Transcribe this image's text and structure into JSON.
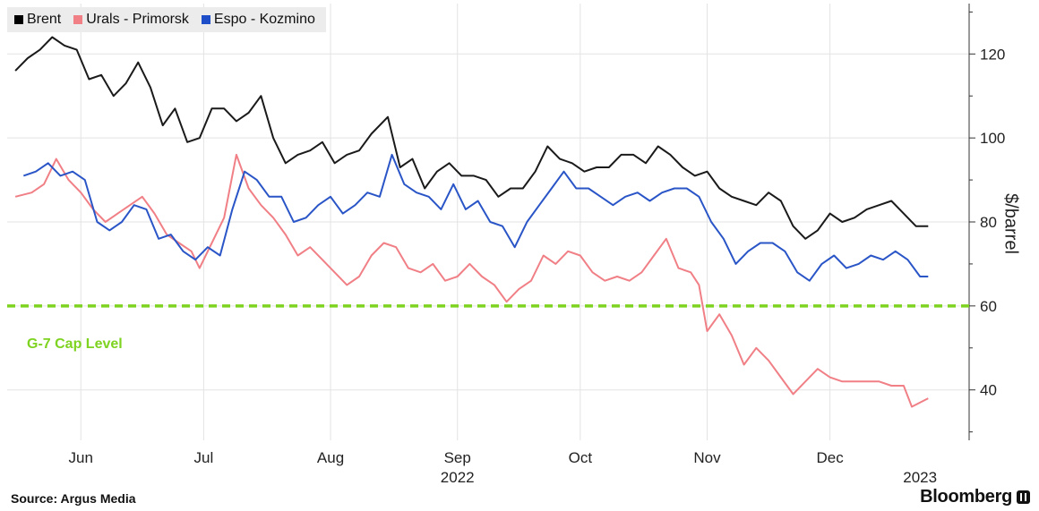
{
  "legend": [
    {
      "label": "Brent",
      "color": "#000000"
    },
    {
      "label": "Urals - Primorsk",
      "color": "#f07f86"
    },
    {
      "label": "Espo - Kozmino",
      "color": "#1e4fc9"
    }
  ],
  "source": "Source: Argus Media",
  "brand": "Bloomberg",
  "colors": {
    "brent": "#1a1a1a",
    "urals": "#f07f86",
    "espo": "#2a55c7",
    "cap": "#7ed321",
    "grid": "#e3e3e3"
  },
  "chart_data": {
    "type": "line",
    "y_axis_label": "$/barrel",
    "y_ticks": [
      40,
      60,
      80,
      100,
      120
    ],
    "ylim": [
      28,
      132
    ],
    "y_axis_position": "right",
    "x_ticks": [
      {
        "label": "Jun",
        "date": "2022-06-15"
      },
      {
        "label": "Jul",
        "date": "2022-07-15"
      },
      {
        "label": "Aug",
        "date": "2022-08-15"
      },
      {
        "label": "Sep",
        "date": "2022-09-15"
      },
      {
        "label": "Oct",
        "date": "2022-10-15"
      },
      {
        "label": "Nov",
        "date": "2022-11-15"
      },
      {
        "label": "Dec",
        "date": "2022-12-15"
      }
    ],
    "x_year_labels": [
      {
        "label": "2022",
        "date": "2022-09-15"
      },
      {
        "label": "2023",
        "date": "2023-01-06"
      }
    ],
    "xlim": [
      "2022-05-28",
      "2023-01-18"
    ],
    "grid": true,
    "legend_position": "top-left",
    "reference_line": {
      "label": "G-7 Cap Level",
      "value": 60
    },
    "series": [
      {
        "name": "Brent",
        "key": "brent",
        "points": [
          [
            "2022-05-30",
            116
          ],
          [
            "2022-06-02",
            119
          ],
          [
            "2022-06-05",
            121
          ],
          [
            "2022-06-08",
            124
          ],
          [
            "2022-06-11",
            122
          ],
          [
            "2022-06-14",
            121
          ],
          [
            "2022-06-17",
            114
          ],
          [
            "2022-06-20",
            115
          ],
          [
            "2022-06-23",
            110
          ],
          [
            "2022-06-26",
            113
          ],
          [
            "2022-06-29",
            118
          ],
          [
            "2022-07-02",
            112
          ],
          [
            "2022-07-05",
            103
          ],
          [
            "2022-07-08",
            107
          ],
          [
            "2022-07-11",
            99
          ],
          [
            "2022-07-14",
            100
          ],
          [
            "2022-07-17",
            107
          ],
          [
            "2022-07-20",
            107
          ],
          [
            "2022-07-23",
            104
          ],
          [
            "2022-07-26",
            106
          ],
          [
            "2022-07-29",
            110
          ],
          [
            "2022-08-01",
            100
          ],
          [
            "2022-08-04",
            94
          ],
          [
            "2022-08-07",
            96
          ],
          [
            "2022-08-10",
            97
          ],
          [
            "2022-08-13",
            99
          ],
          [
            "2022-08-16",
            94
          ],
          [
            "2022-08-19",
            96
          ],
          [
            "2022-08-22",
            97
          ],
          [
            "2022-08-25",
            101
          ],
          [
            "2022-08-29",
            105
          ],
          [
            "2022-09-01",
            93
          ],
          [
            "2022-09-04",
            95
          ],
          [
            "2022-09-07",
            88
          ],
          [
            "2022-09-10",
            92
          ],
          [
            "2022-09-13",
            94
          ],
          [
            "2022-09-16",
            91
          ],
          [
            "2022-09-19",
            91
          ],
          [
            "2022-09-22",
            90
          ],
          [
            "2022-09-25",
            86
          ],
          [
            "2022-09-28",
            88
          ],
          [
            "2022-10-01",
            88
          ],
          [
            "2022-10-04",
            92
          ],
          [
            "2022-10-07",
            98
          ],
          [
            "2022-10-10",
            95
          ],
          [
            "2022-10-13",
            94
          ],
          [
            "2022-10-16",
            92
          ],
          [
            "2022-10-19",
            93
          ],
          [
            "2022-10-22",
            93
          ],
          [
            "2022-10-25",
            96
          ],
          [
            "2022-10-28",
            96
          ],
          [
            "2022-10-31",
            94
          ],
          [
            "2022-11-03",
            98
          ],
          [
            "2022-11-06",
            96
          ],
          [
            "2022-11-09",
            93
          ],
          [
            "2022-11-12",
            91
          ],
          [
            "2022-11-15",
            92
          ],
          [
            "2022-11-18",
            88
          ],
          [
            "2022-11-21",
            86
          ],
          [
            "2022-11-24",
            85
          ],
          [
            "2022-11-27",
            84
          ],
          [
            "2022-11-30",
            87
          ],
          [
            "2022-12-03",
            85
          ],
          [
            "2022-12-06",
            79
          ],
          [
            "2022-12-09",
            76
          ],
          [
            "2022-12-12",
            78
          ],
          [
            "2022-12-15",
            82
          ],
          [
            "2022-12-18",
            80
          ],
          [
            "2022-12-21",
            81
          ],
          [
            "2022-12-24",
            83
          ],
          [
            "2022-12-27",
            84
          ],
          [
            "2022-12-30",
            85
          ],
          [
            "2023-01-02",
            82
          ],
          [
            "2023-01-05",
            79
          ],
          [
            "2023-01-08",
            79
          ]
        ]
      },
      {
        "name": "Urals - Primorsk",
        "key": "urals",
        "points": [
          [
            "2022-05-30",
            86
          ],
          [
            "2022-06-03",
            87
          ],
          [
            "2022-06-06",
            89
          ],
          [
            "2022-06-09",
            95
          ],
          [
            "2022-06-12",
            90
          ],
          [
            "2022-06-15",
            87
          ],
          [
            "2022-06-18",
            83
          ],
          [
            "2022-06-21",
            80
          ],
          [
            "2022-06-24",
            82
          ],
          [
            "2022-06-27",
            84
          ],
          [
            "2022-06-30",
            86
          ],
          [
            "2022-07-03",
            82
          ],
          [
            "2022-07-06",
            77
          ],
          [
            "2022-07-09",
            75
          ],
          [
            "2022-07-12",
            73
          ],
          [
            "2022-07-14",
            69
          ],
          [
            "2022-07-17",
            75
          ],
          [
            "2022-07-20",
            81
          ],
          [
            "2022-07-23",
            96
          ],
          [
            "2022-07-26",
            88
          ],
          [
            "2022-07-29",
            84
          ],
          [
            "2022-08-01",
            81
          ],
          [
            "2022-08-04",
            77
          ],
          [
            "2022-08-07",
            72
          ],
          [
            "2022-08-10",
            74
          ],
          [
            "2022-08-13",
            71
          ],
          [
            "2022-08-16",
            68
          ],
          [
            "2022-08-19",
            65
          ],
          [
            "2022-08-22",
            67
          ],
          [
            "2022-08-25",
            72
          ],
          [
            "2022-08-28",
            75
          ],
          [
            "2022-08-31",
            74
          ],
          [
            "2022-09-03",
            69
          ],
          [
            "2022-09-06",
            68
          ],
          [
            "2022-09-09",
            70
          ],
          [
            "2022-09-12",
            66
          ],
          [
            "2022-09-15",
            67
          ],
          [
            "2022-09-18",
            70
          ],
          [
            "2022-09-21",
            67
          ],
          [
            "2022-09-24",
            65
          ],
          [
            "2022-09-27",
            61
          ],
          [
            "2022-09-30",
            64
          ],
          [
            "2022-10-03",
            66
          ],
          [
            "2022-10-06",
            72
          ],
          [
            "2022-10-09",
            70
          ],
          [
            "2022-10-12",
            73
          ],
          [
            "2022-10-15",
            72
          ],
          [
            "2022-10-18",
            68
          ],
          [
            "2022-10-21",
            66
          ],
          [
            "2022-10-24",
            67
          ],
          [
            "2022-10-27",
            66
          ],
          [
            "2022-10-30",
            68
          ],
          [
            "2022-11-02",
            72
          ],
          [
            "2022-11-05",
            76
          ],
          [
            "2022-11-08",
            69
          ],
          [
            "2022-11-11",
            68
          ],
          [
            "2022-11-13",
            65
          ],
          [
            "2022-11-15",
            54
          ],
          [
            "2022-11-18",
            58
          ],
          [
            "2022-11-21",
            53
          ],
          [
            "2022-11-24",
            46
          ],
          [
            "2022-11-27",
            50
          ],
          [
            "2022-11-30",
            47
          ],
          [
            "2022-12-03",
            43
          ],
          [
            "2022-12-06",
            39
          ],
          [
            "2022-12-09",
            42
          ],
          [
            "2022-12-12",
            45
          ],
          [
            "2022-12-15",
            43
          ],
          [
            "2022-12-18",
            42
          ],
          [
            "2022-12-21",
            42
          ],
          [
            "2022-12-24",
            42
          ],
          [
            "2022-12-27",
            42
          ],
          [
            "2022-12-30",
            41
          ],
          [
            "2023-01-02",
            41
          ],
          [
            "2023-01-04",
            36
          ],
          [
            "2023-01-08",
            38
          ]
        ]
      },
      {
        "name": "Espo - Kozmino",
        "key": "espo",
        "points": [
          [
            "2022-06-01",
            91
          ],
          [
            "2022-06-04",
            92
          ],
          [
            "2022-06-07",
            94
          ],
          [
            "2022-06-10",
            91
          ],
          [
            "2022-06-13",
            92
          ],
          [
            "2022-06-16",
            90
          ],
          [
            "2022-06-19",
            80
          ],
          [
            "2022-06-22",
            78
          ],
          [
            "2022-06-25",
            80
          ],
          [
            "2022-06-28",
            84
          ],
          [
            "2022-07-01",
            83
          ],
          [
            "2022-07-04",
            76
          ],
          [
            "2022-07-07",
            77
          ],
          [
            "2022-07-10",
            73
          ],
          [
            "2022-07-13",
            71
          ],
          [
            "2022-07-16",
            74
          ],
          [
            "2022-07-19",
            72
          ],
          [
            "2022-07-22",
            83
          ],
          [
            "2022-07-25",
            92
          ],
          [
            "2022-07-28",
            90
          ],
          [
            "2022-07-31",
            86
          ],
          [
            "2022-08-03",
            86
          ],
          [
            "2022-08-06",
            80
          ],
          [
            "2022-08-09",
            81
          ],
          [
            "2022-08-12",
            84
          ],
          [
            "2022-08-15",
            86
          ],
          [
            "2022-08-18",
            82
          ],
          [
            "2022-08-21",
            84
          ],
          [
            "2022-08-24",
            87
          ],
          [
            "2022-08-27",
            86
          ],
          [
            "2022-08-30",
            96
          ],
          [
            "2022-09-02",
            89
          ],
          [
            "2022-09-05",
            87
          ],
          [
            "2022-09-08",
            86
          ],
          [
            "2022-09-11",
            83
          ],
          [
            "2022-09-14",
            89
          ],
          [
            "2022-09-17",
            83
          ],
          [
            "2022-09-20",
            85
          ],
          [
            "2022-09-23",
            80
          ],
          [
            "2022-09-26",
            79
          ],
          [
            "2022-09-29",
            74
          ],
          [
            "2022-10-02",
            80
          ],
          [
            "2022-10-05",
            84
          ],
          [
            "2022-10-08",
            88
          ],
          [
            "2022-10-11",
            92
          ],
          [
            "2022-10-14",
            88
          ],
          [
            "2022-10-17",
            88
          ],
          [
            "2022-10-20",
            86
          ],
          [
            "2022-10-23",
            84
          ],
          [
            "2022-10-26",
            86
          ],
          [
            "2022-10-29",
            87
          ],
          [
            "2022-11-01",
            85
          ],
          [
            "2022-11-04",
            87
          ],
          [
            "2022-11-07",
            88
          ],
          [
            "2022-11-10",
            88
          ],
          [
            "2022-11-13",
            86
          ],
          [
            "2022-11-16",
            80
          ],
          [
            "2022-11-19",
            76
          ],
          [
            "2022-11-22",
            70
          ],
          [
            "2022-11-25",
            73
          ],
          [
            "2022-11-28",
            75
          ],
          [
            "2022-12-01",
            75
          ],
          [
            "2022-12-04",
            73
          ],
          [
            "2022-12-07",
            68
          ],
          [
            "2022-12-10",
            66
          ],
          [
            "2022-12-13",
            70
          ],
          [
            "2022-12-16",
            72
          ],
          [
            "2022-12-19",
            69
          ],
          [
            "2022-12-22",
            70
          ],
          [
            "2022-12-25",
            72
          ],
          [
            "2022-12-28",
            71
          ],
          [
            "2022-12-31",
            73
          ],
          [
            "2023-01-03",
            71
          ],
          [
            "2023-01-06",
            67
          ],
          [
            "2023-01-08",
            67
          ]
        ]
      }
    ]
  }
}
